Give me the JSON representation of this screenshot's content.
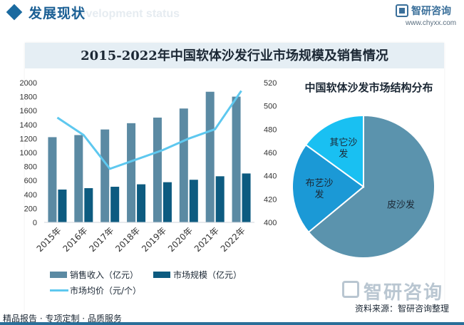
{
  "header": {
    "title": "发展现状",
    "subtitle": "Development status",
    "brand_name": "智研咨询",
    "brand_url": "www.chyxx.com"
  },
  "chart_data": [
    {
      "type": "bar",
      "title": "2015-2022年中国软体沙发行业市场规模及销售情况",
      "categories": [
        "2015年",
        "2016年",
        "2017年",
        "2018年",
        "2019年",
        "2020年",
        "2021年",
        "2022年"
      ],
      "series": [
        {
          "name": "销售收入（亿元）",
          "type": "bar",
          "axis": "left",
          "color": "#5b8aa3",
          "values": [
            1220,
            1250,
            1330,
            1420,
            1500,
            1630,
            1870,
            1800
          ]
        },
        {
          "name": "市场规模（亿元）",
          "type": "bar",
          "axis": "left",
          "color": "#0d5b80",
          "values": [
            470,
            490,
            510,
            545,
            575,
            610,
            660,
            700
          ]
        },
        {
          "name": "市场均价（元/个）",
          "type": "line",
          "axis": "right",
          "color": "#5ec8ef",
          "values": [
            490,
            475,
            446,
            454,
            462,
            472,
            480,
            513
          ]
        }
      ],
      "y_left": {
        "min": 0,
        "max": 2000,
        "step": 200,
        "ticks": [
          "0",
          "200",
          "400",
          "600",
          "800",
          "1000",
          "1200",
          "1400",
          "1600",
          "1800",
          "2000"
        ]
      },
      "y_right": {
        "min": 400,
        "max": 520,
        "step": 20,
        "ticks": [
          "400",
          "420",
          "440",
          "460",
          "480",
          "500",
          "520"
        ]
      },
      "legend_position": "bottom",
      "grid": false
    },
    {
      "type": "pie",
      "title": "中国软体沙发市场结构分布",
      "labels": [
        "皮沙发",
        "布艺沙发",
        "其它沙发"
      ],
      "values": [
        64,
        21,
        15
      ],
      "display_labels": [
        "皮沙发",
        "布艺沙\n发",
        "其它沙\n发"
      ],
      "colors": [
        "#5b93ad",
        "#1b99d6",
        "#19c0f2"
      ]
    }
  ],
  "legend": {
    "sales": "销售收入（亿元）",
    "market": "市场规模（亿元）",
    "price": "市场均价（元/个）"
  },
  "watermark": {
    "name": "智研咨询"
  },
  "source": "资料来源：智研咨询整理",
  "footer": "精品报告 · 专项定制 · 品质服务"
}
